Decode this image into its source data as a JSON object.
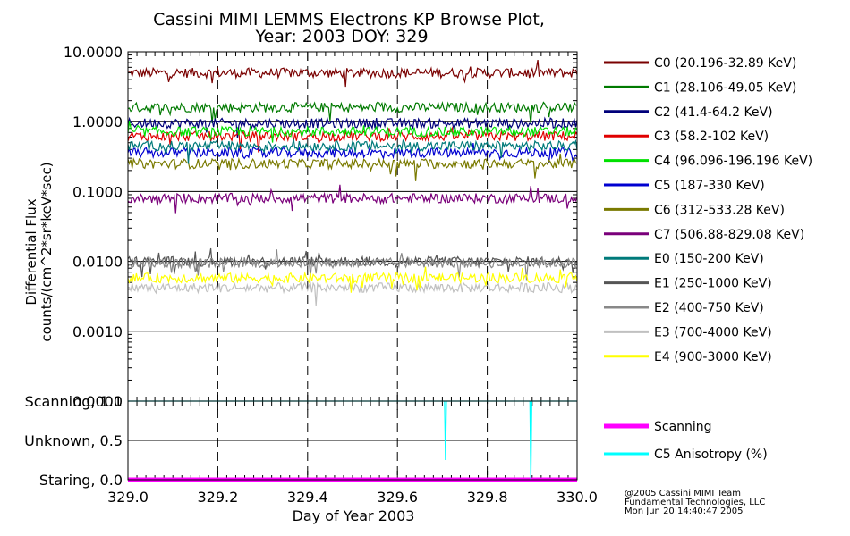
{
  "chart_data": [
    {
      "type": "line",
      "title": "Cassini MIMI LEMMS Electrons KP Browse Plot,",
      "subtitle": "Year: 2003 DOY: 329",
      "ylabel": [
        "Differential Flux",
        "counts/(cm^2*sr*keV*sec)"
      ],
      "yscale": "log",
      "ylim": [
        0.0001,
        10
      ],
      "xlim": [
        329.0,
        330.0
      ],
      "yticks": [
        "10.0000",
        "1.0000",
        "0.1000",
        "0.0100",
        "0.0010",
        "0.0001"
      ],
      "grid": true,
      "legend_position": "right",
      "series": [
        {
          "name": "C0 (20.196-32.89 KeV)",
          "color": "#7a0000",
          "level": 5.0
        },
        {
          "name": "C1 (28.106-49.05 KeV)",
          "color": "#007a00",
          "level": 1.6
        },
        {
          "name": "C2 (41.4-64.2 KeV)",
          "color": "#00007a",
          "level": 0.95
        },
        {
          "name": "C3 (58.2-102 KeV)",
          "color": "#e00000",
          "level": 0.62
        },
        {
          "name": "C4 (96.096-196.196 KeV)",
          "color": "#00e000",
          "level": 0.72
        },
        {
          "name": "C5 (187-330 KeV)",
          "color": "#0000d0",
          "level": 0.36
        },
        {
          "name": "C6 (312-533.28 KeV)",
          "color": "#7a7a00",
          "level": 0.25
        },
        {
          "name": "C7 (506.88-829.08 KeV)",
          "color": "#7a007a",
          "level": 0.08
        },
        {
          "name": "E0 (150-200 KeV)",
          "color": "#007a7a",
          "level": 0.45
        },
        {
          "name": "E1 (250-1000 KeV)",
          "color": "#555555",
          "level": 0.01
        },
        {
          "name": "E2 (400-750 KeV)",
          "color": "#888888",
          "level": 0.0095
        },
        {
          "name": "E3 (700-4000 KeV)",
          "color": "#c0c0c0",
          "level": 0.0042
        },
        {
          "name": "E4 (900-3000 KeV)",
          "color": "#ffff00",
          "level": 0.0058
        }
      ]
    },
    {
      "type": "line",
      "xlabel": "Day of Year 2003",
      "xlim": [
        329.0,
        330.0
      ],
      "xticks": [
        "329.0",
        "329.2",
        "329.4",
        "329.6",
        "329.8",
        "330.0"
      ],
      "ylim": [
        0.0,
        1.0
      ],
      "yticks": [
        "Staring, 0.0",
        "Unknown, 0.5",
        "Scanning, 1.0"
      ],
      "series": [
        {
          "name": "Scanning",
          "color": "#ff00ff",
          "values": [
            [
              329.0,
              0.0
            ],
            [
              330.0,
              0.0
            ]
          ]
        },
        {
          "name": "C5 Anisotropy (%)",
          "color": "#00ffff",
          "values": [
            [
              329.0,
              1.0
            ],
            [
              329.705,
              1.0
            ],
            [
              329.707,
              0.25
            ],
            [
              329.709,
              1.0
            ],
            [
              329.895,
              1.0
            ],
            [
              329.897,
              0.0
            ],
            [
              329.899,
              1.0
            ],
            [
              330.0,
              1.0
            ]
          ]
        }
      ]
    }
  ],
  "footer": {
    "copyright": "@2005 Cassini MIMI Team",
    "company": "Fundamental Technologies, LLC",
    "timestamp": "Mon Jun 20 14:40:47 2005"
  }
}
